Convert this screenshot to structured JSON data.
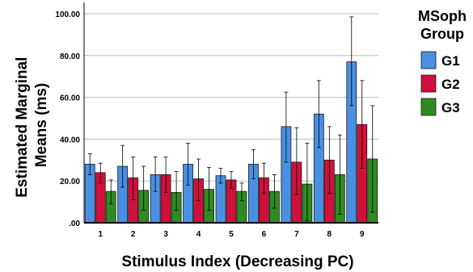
{
  "chart_data": {
    "type": "bar",
    "title": "",
    "xlabel": "Stimulus Index (Decreasing PC)",
    "ylabel_lines": [
      "Estimated Marginal",
      "Means (ms)"
    ],
    "categories": [
      "1",
      "2",
      "3",
      "4",
      "5",
      "6",
      "7",
      "8",
      "9"
    ],
    "ylim": [
      0,
      100
    ],
    "yticks": [
      0,
      20,
      40,
      60,
      80,
      100
    ],
    "ytick_labels": [
      ".00",
      "20.00",
      "40.00",
      "60.00",
      "80.00",
      "100.00"
    ],
    "grid": true,
    "legend": {
      "title_lines": [
        "MSoph",
        "Group"
      ],
      "position": "right"
    },
    "series": [
      {
        "name": "G1",
        "color": "#4a90e2",
        "values": [
          28,
          27,
          23,
          28,
          22.5,
          28,
          46,
          52,
          77
        ],
        "error_low": [
          23,
          17,
          15,
          18,
          19,
          21,
          29,
          36,
          56
        ],
        "error_high": [
          33,
          37,
          31.5,
          38,
          26,
          35,
          62.5,
          68,
          98.5
        ]
      },
      {
        "name": "G2",
        "color": "#d0103a",
        "values": [
          24,
          21.5,
          23,
          21,
          20.5,
          21.5,
          29,
          30,
          47
        ],
        "error_low": [
          19,
          11,
          14.5,
          10.5,
          16.5,
          14,
          13.5,
          14,
          26
        ],
        "error_high": [
          28.5,
          31.5,
          31.5,
          30.5,
          24.5,
          28.5,
          45.5,
          46,
          68
        ]
      },
      {
        "name": "G3",
        "color": "#2e8b22",
        "values": [
          15,
          15.5,
          14.5,
          16,
          15,
          15,
          18.5,
          23,
          30.5
        ],
        "error_low": [
          9,
          6,
          6,
          6,
          10.5,
          7,
          1,
          4,
          5
        ],
        "error_high": [
          20.5,
          27,
          24.5,
          26.5,
          19,
          23,
          38,
          42,
          56
        ]
      }
    ]
  }
}
